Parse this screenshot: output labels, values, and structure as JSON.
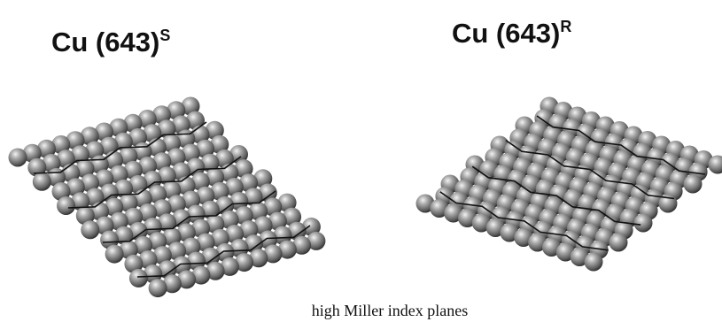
{
  "panels": [
    {
      "label": "Cu (643)",
      "superscript": "S"
    },
    {
      "label": "Cu (643)",
      "superscript": "R"
    }
  ],
  "caption": "high Miller index planes"
}
